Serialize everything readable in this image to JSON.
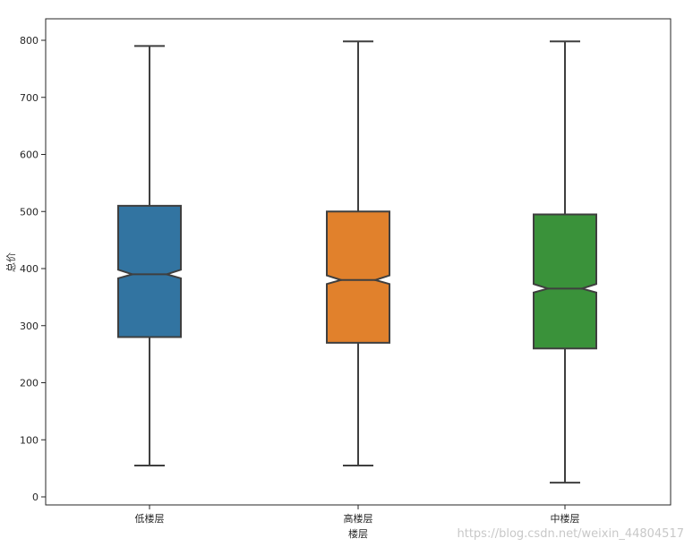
{
  "chart_data": {
    "type": "boxplot",
    "notched": true,
    "xlabel": "楼层",
    "ylabel": "总价",
    "ylim": [
      -15,
      835
    ],
    "yticks": [
      0,
      100,
      200,
      300,
      400,
      500,
      600,
      700,
      800
    ],
    "grid": false,
    "categories": [
      "低楼层",
      "高楼层",
      "中楼层"
    ],
    "boxes": [
      {
        "category": "低楼层",
        "whisker_low": 55,
        "q1": 280,
        "median": 390,
        "q3": 510,
        "whisker_high": 790,
        "notch_low": 383,
        "notch_high": 398,
        "color": "#3274a1"
      },
      {
        "category": "高楼层",
        "whisker_low": 55,
        "q1": 270,
        "median": 380,
        "q3": 500,
        "whisker_high": 798,
        "notch_low": 373,
        "notch_high": 388,
        "color": "#e1812c"
      },
      {
        "category": "中楼层",
        "whisker_low": 25,
        "q1": 260,
        "median": 365,
        "q3": 495,
        "whisker_high": 798,
        "notch_low": 358,
        "notch_high": 373,
        "color": "#3a923a"
      }
    ]
  },
  "watermark": "https://blog.csdn.net/weixin_44804517"
}
